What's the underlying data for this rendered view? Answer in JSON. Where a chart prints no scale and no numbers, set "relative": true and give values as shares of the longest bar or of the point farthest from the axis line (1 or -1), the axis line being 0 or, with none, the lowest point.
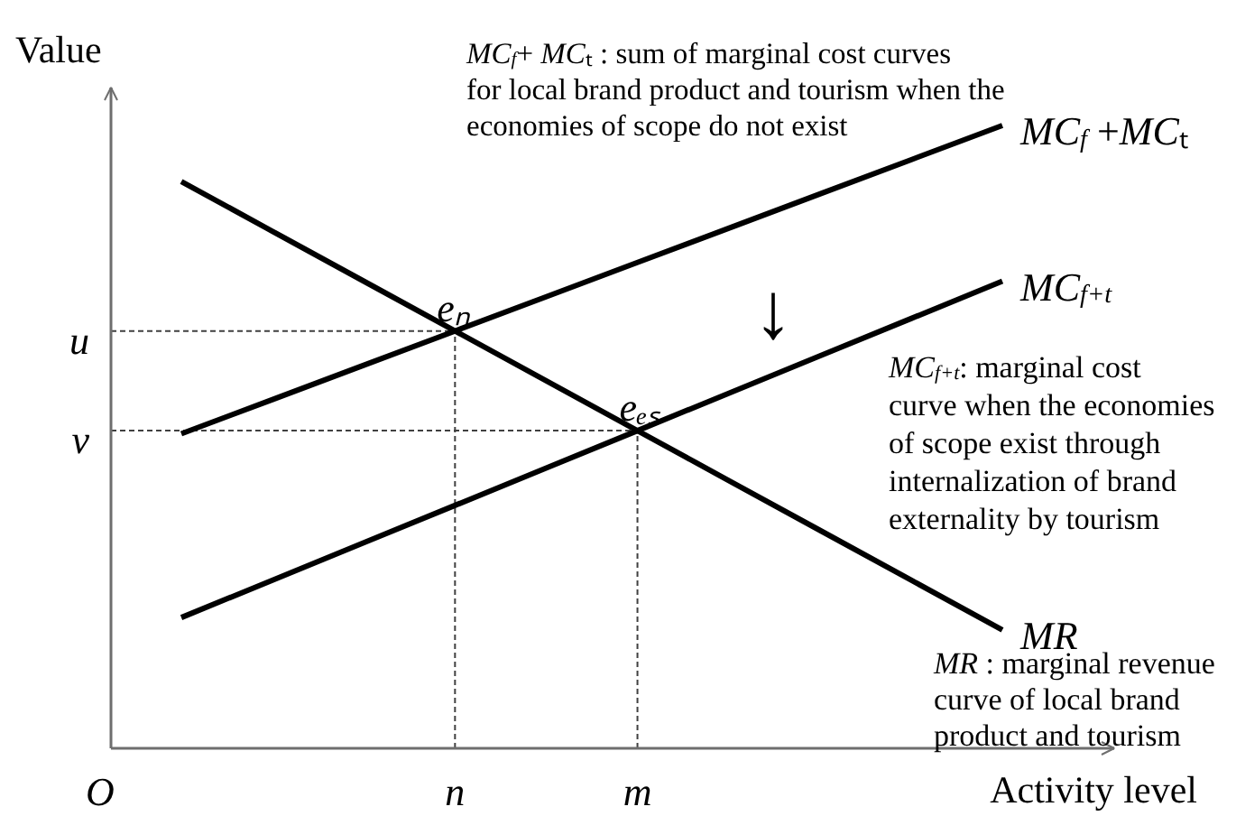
{
  "chart_data": {
    "type": "line",
    "xlabel": "Activity level",
    "ylabel": "Value",
    "relative": true,
    "categories": [
      null,
      null,
      null,
      "n",
      null,
      "m",
      null,
      null,
      null,
      null
    ],
    "series": [
      {
        "name": "MC$_{f}$ +MCₜ",
        "color": "#000000",
        "values": [
          0.505,
          0.56,
          0.615,
          0.67,
          0.725,
          0.78,
          0.835,
          0.89,
          0.945,
          1
        ]
      },
      {
        "name": "MC$_{f+t}$",
        "color": "#000000",
        "values": [
          0.21,
          0.27,
          0.33,
          0.39,
          0.45,
          0.51,
          0.57,
          0.63,
          0.69,
          0.75
        ]
      },
      {
        "name": "MR",
        "color": "#000000",
        "values": [
          0.91,
          0.83,
          0.75,
          0.67,
          0.59,
          0.51,
          0.43,
          0.35,
          0.27,
          0.19
        ]
      }
    ],
    "ref_lines": [
      {
        "axis": "x",
        "value": "n",
        "color": "#404040",
        "line_style": "dashed"
      },
      {
        "axis": "x",
        "value": "m",
        "color": "#404040",
        "line_style": "dashed"
      },
      {
        "axis": "y",
        "value": 0.67,
        "label": "u",
        "color": "#404040",
        "line_style": "dashed"
      },
      {
        "axis": "y",
        "value": 0.51,
        "label": "v",
        "color": "#404040",
        "line_style": "dashed"
      }
    ],
    "annotations": [
      "MC$_{f}$+ MCₜ : sum of marginal cost curves\nfor local brand product and tourism when the\neconomies of scope do not exist",
      "MC$_{f+t}$: marginal cost\ncurve when the economies\nof scope exist through\ninternalization of brand\nexternality by tourism",
      "MR : marginal revenue\ncurve  of local brand\nproduct and tourism",
      "O",
      "↓",
      {
        "text": "eₙ",
        "x": "n",
        "y": 0.67
      },
      {
        "text": "eₑₛ",
        "x": "m",
        "y": 0.51
      }
    ]
  }
}
